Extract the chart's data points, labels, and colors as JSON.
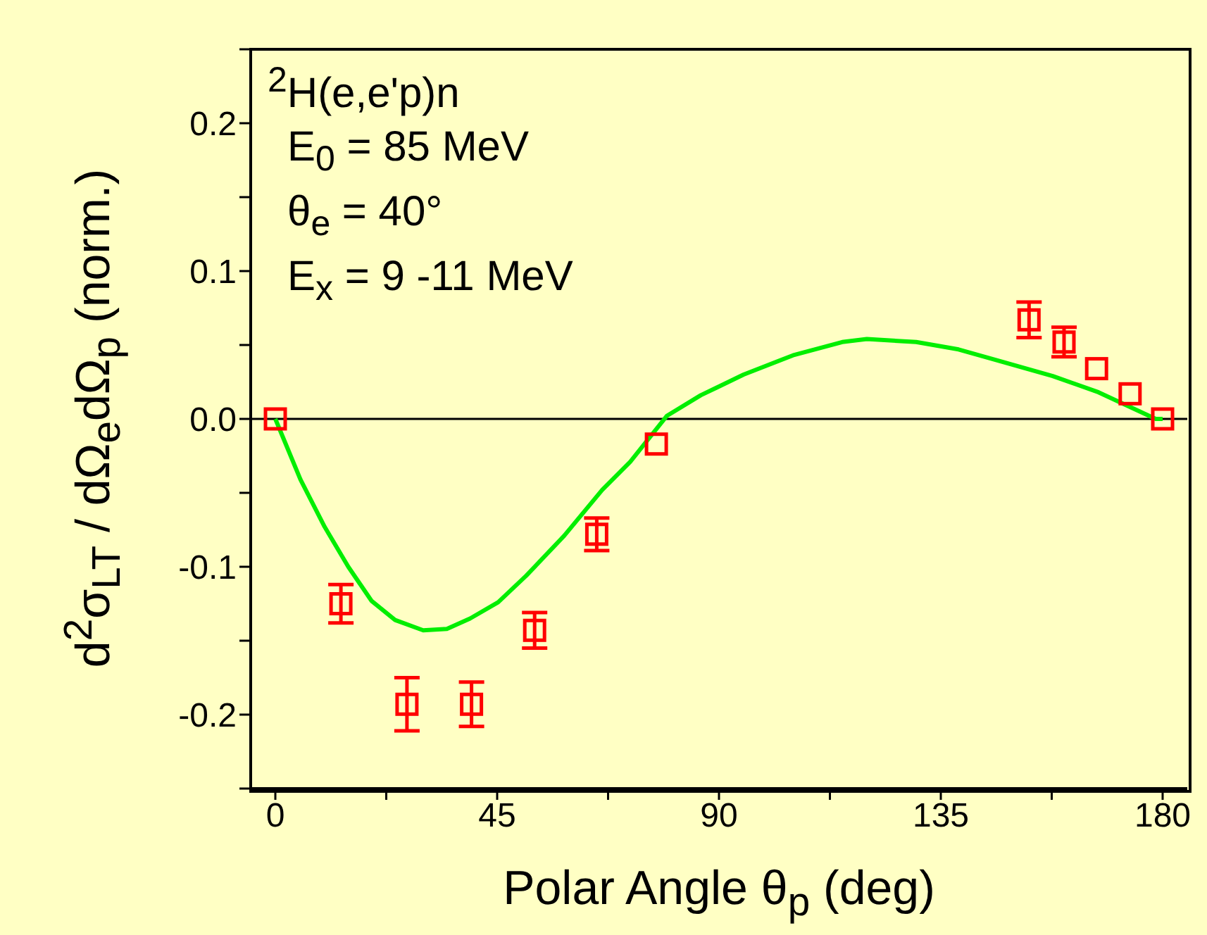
{
  "chart_data": {
    "type": "scatter",
    "xlabel": "Polar Angle θ$_{p}$ (deg)",
    "ylabel": "d$^{2}$σ$_{LT}$ / dΩ$_{e}$dΩ$_{p}$ (norm.)",
    "annotations": [
      "$^{2}$H(e,e'p)n",
      "E$_{0}$ = 85 MeV",
      "θ$_{e}$  = 40°",
      "E$_{x}$  = 9 -11 MeV"
    ],
    "xlim": [
      -5,
      185
    ],
    "xticks": [
      0,
      {
        "value": 22.5,
        "label": null
      },
      45,
      {
        "value": 67.5,
        "label": null
      },
      90,
      {
        "value": 112.5,
        "label": null
      },
      135,
      {
        "value": 157.5,
        "label": null
      },
      180
    ],
    "ylim": [
      -0.25,
      0.25
    ],
    "yticks": [
      {
        "value": -0.25,
        "label": null
      },
      -0.2,
      {
        "value": -0.15,
        "label": null
      },
      -0.1,
      {
        "value": -0.05,
        "label": null
      },
      {
        "value": 0,
        "label": "0.0"
      },
      {
        "value": 0.05,
        "label": null
      },
      0.1,
      {
        "value": 0.15,
        "label": null
      },
      0.2,
      {
        "value": 0.25,
        "label": null
      }
    ],
    "ref_lines": [
      {
        "axis": "y",
        "value": 0,
        "color": "#000000"
      }
    ],
    "marker": "square",
    "series": [
      {
        "color": "#ff0000",
        "x": [
          0,
          13.3,
          26.7,
          39.8,
          52.6,
          65.2,
          77.3,
          152.9,
          160,
          166.6,
          173.4,
          180
        ],
        "values": [
          0,
          -0.125,
          -0.193,
          -0.193,
          -0.143,
          -0.078,
          -0.017,
          0.067,
          0.052,
          0.034,
          0.017,
          0
        ],
        "errors": [
          null,
          0.013,
          0.018,
          0.015,
          0.012,
          0.011,
          null,
          0.012,
          0.01,
          null,
          null,
          null
        ]
      },
      {
        "type": "line",
        "color": "#00ee00",
        "marker": "none",
        "x": [
          0,
          5.1,
          10,
          14.8,
          19.5,
          24.3,
          30,
          34.8,
          39.5,
          45.2,
          50.9,
          58.6,
          66.3,
          72,
          79.4,
          86.3,
          95,
          105,
          115,
          120,
          130,
          138.6,
          157.7,
          167,
          178.6,
          180
        ],
        "values": [
          0,
          -0.041,
          -0.073,
          -0.1,
          -0.123,
          -0.136,
          -0.143,
          -0.142,
          -0.135,
          -0.124,
          -0.106,
          -0.079,
          -0.048,
          -0.029,
          0.002,
          0.016,
          0.03,
          0.043,
          0.052,
          0.054,
          0.052,
          0.047,
          0.029,
          0.018,
          0,
          0
        ]
      }
    ]
  }
}
